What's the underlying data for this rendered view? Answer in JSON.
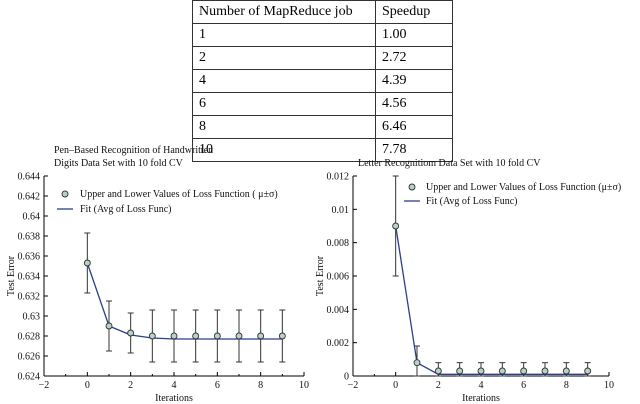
{
  "table": {
    "headers": [
      "Number of MapReduce job",
      "Speedup"
    ],
    "rows": [
      [
        "1",
        "1.00"
      ],
      [
        "2",
        "2.72"
      ],
      [
        "4",
        "4.39"
      ],
      [
        "6",
        "4.56"
      ],
      [
        "8",
        "6.46"
      ],
      [
        "10",
        "7.78"
      ]
    ]
  },
  "chart_data": [
    {
      "type": "line",
      "title": "Pen–Based Recognition of Handwritten\nDigits Data Set with 10 fold CV",
      "xlabel": "Iterations",
      "ylabel": "Test Error",
      "xlim": [
        -2,
        10
      ],
      "ylim": [
        0.624,
        0.644
      ],
      "xticks": [
        -2,
        0,
        2,
        4,
        6,
        8,
        10
      ],
      "yticks": [
        0.624,
        0.626,
        0.628,
        0.63,
        0.632,
        0.634,
        0.636,
        0.638,
        0.64,
        0.642,
        0.644
      ],
      "ytick_labels": [
        "0.624",
        "0.626",
        "0.628",
        "0.63",
        "0.632",
        "0.634",
        "0.636",
        "0.638",
        "0.64",
        "0.642",
        "0.644"
      ],
      "legend": {
        "position": "top-left",
        "entries": [
          "Upper and Lower Values of Loss Function ( μ±σ)",
          "Fit (Avg of Loss Func)"
        ]
      },
      "series": [
        {
          "name": "Upper and Lower Values of Loss Function ( μ±σ)",
          "x": [
            0,
            1,
            2,
            3,
            4,
            5,
            6,
            7,
            8,
            9
          ],
          "y": [
            0.6353,
            0.629,
            0.6283,
            0.628,
            0.628,
            0.628,
            0.628,
            0.628,
            0.628,
            0.628
          ],
          "yerr": [
            0.003,
            0.0025,
            0.002,
            0.0026,
            0.0026,
            0.0026,
            0.0026,
            0.0026,
            0.0026,
            0.0026
          ]
        },
        {
          "name": "Fit (Avg of Loss Func)",
          "x": [
            0,
            1,
            2,
            3,
            4,
            5,
            6,
            7,
            8,
            9
          ],
          "y": [
            0.6353,
            0.629,
            0.6281,
            0.6278,
            0.6277,
            0.6277,
            0.6277,
            0.6277,
            0.6277,
            0.6277
          ]
        }
      ],
      "colors": {
        "fit": "#2b3f8c",
        "marker_fill": "#b7d2c6",
        "marker_edge": "#333333",
        "errorbar": "#333333"
      }
    },
    {
      "type": "line",
      "title": "Letter Recognitiom Data Set with 10 fold CV",
      "xlabel": "Iterations",
      "ylabel": "Test Error",
      "xlim": [
        -2,
        10
      ],
      "ylim": [
        0,
        0.012
      ],
      "xticks": [
        -2,
        0,
        2,
        4,
        6,
        8,
        10
      ],
      "yticks": [
        0,
        0.002,
        0.004,
        0.006,
        0.008,
        0.01,
        0.012
      ],
      "ytick_labels": [
        "0",
        "0.002",
        "0.004",
        "0.006",
        "0.008",
        "0.01",
        "0.012"
      ],
      "legend": {
        "position": "top-right",
        "entries": [
          "Upper and Lower Values of Loss Function (μ±σ)",
          "Fit (Avg of Loss Func)"
        ]
      },
      "series": [
        {
          "name": "Upper and Lower Values of Loss Function (μ±σ)",
          "x": [
            0,
            1,
            2,
            3,
            4,
            5,
            6,
            7,
            8,
            9
          ],
          "y": [
            0.009,
            0.0008,
            0.0003,
            0.0003,
            0.0003,
            0.0003,
            0.0003,
            0.0003,
            0.0003,
            0.0003
          ],
          "yerr": [
            0.003,
            0.001,
            0.0005,
            0.0005,
            0.0005,
            0.0005,
            0.0005,
            0.0005,
            0.0005,
            0.0005
          ]
        },
        {
          "name": "Fit (Avg of Loss Func)",
          "x": [
            0,
            1,
            2,
            3,
            4,
            5,
            6,
            7,
            8,
            9
          ],
          "y": [
            0.009,
            0.0008,
            0.0001,
            0.0001,
            0.0001,
            0.0001,
            0.0001,
            0.0001,
            0.0001,
            0.0001
          ]
        }
      ],
      "colors": {
        "fit": "#2b3f8c",
        "marker_fill": "#b7d2c6",
        "marker_edge": "#333333",
        "errorbar": "#333333"
      }
    }
  ]
}
